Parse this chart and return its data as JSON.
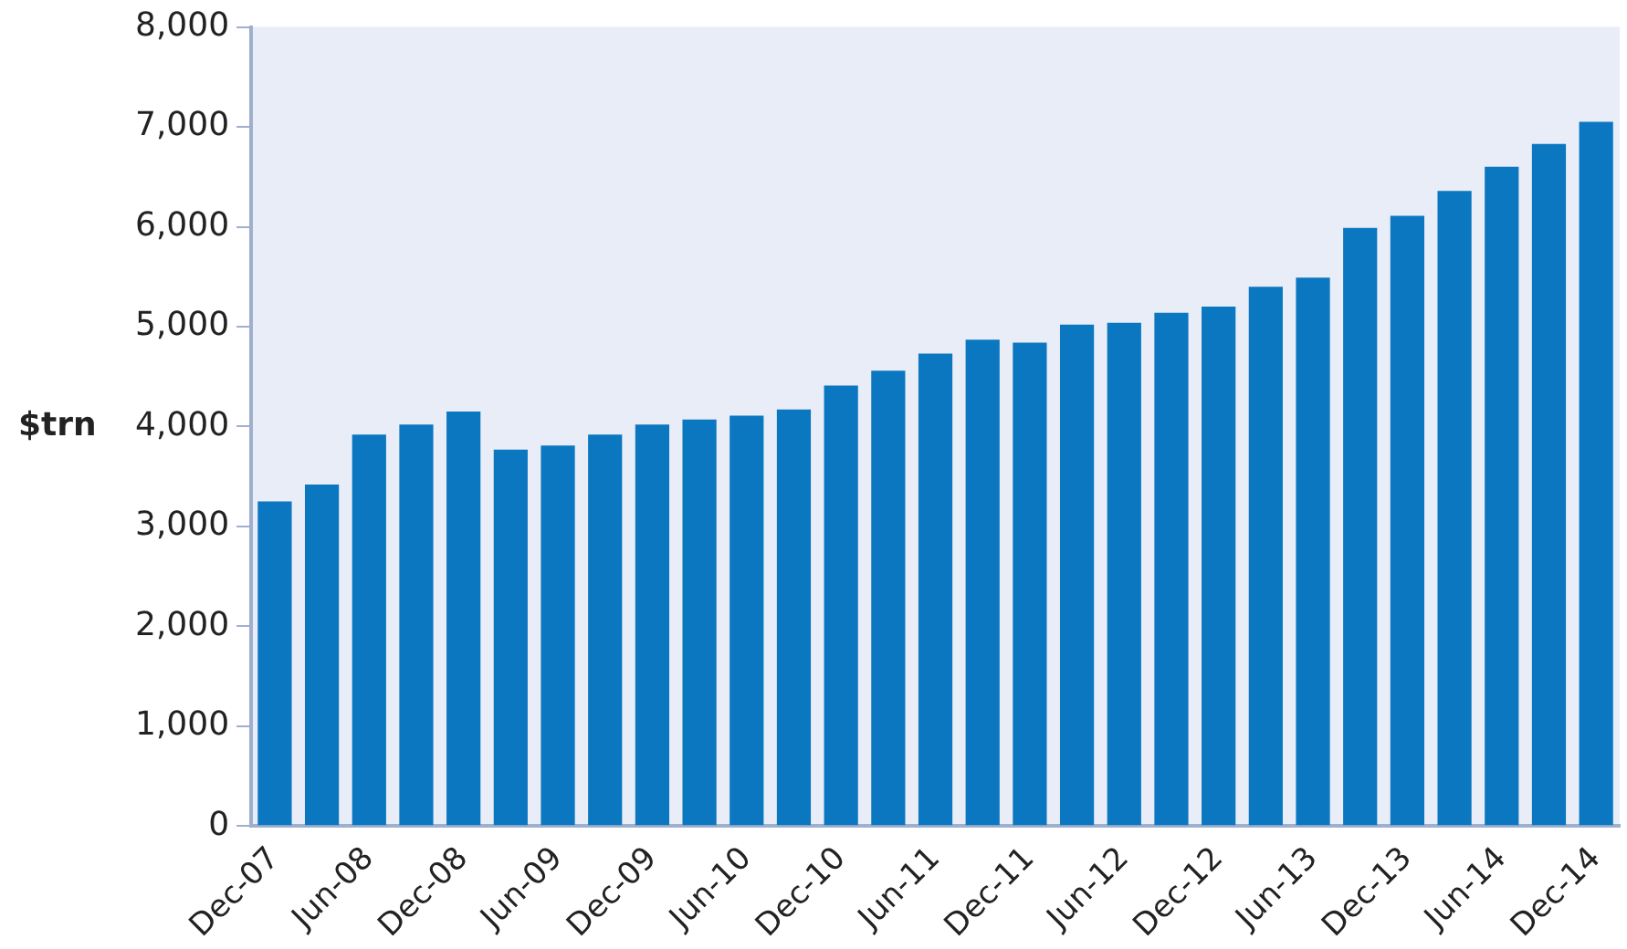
{
  "chart_data": {
    "type": "bar",
    "ylabel": "$trn",
    "categories": [
      "Dec-07",
      null,
      "Jun-08",
      null,
      "Dec-08",
      null,
      "Jun-09",
      null,
      "Dec-09",
      null,
      "Jun-10",
      null,
      "Dec-10",
      null,
      "Jun-11",
      null,
      "Dec-11",
      null,
      "Jun-12",
      null,
      "Dec-12",
      null,
      "Jun-13",
      null,
      "Dec-13",
      null,
      "Jun-14",
      null,
      "Dec-14"
    ],
    "values": [
      3250,
      3420,
      3920,
      4020,
      4150,
      3770,
      3810,
      3920,
      4020,
      4070,
      4110,
      4170,
      4410,
      4560,
      4730,
      4870,
      4840,
      5020,
      5040,
      5140,
      5200,
      5400,
      5490,
      5990,
      6110,
      6360,
      6600,
      6830,
      7050
    ],
    "color": "#0b77c0",
    "ylim": [
      0,
      8000
    ],
    "yticks": [
      0,
      {
        "value": 1000,
        "label": "1,000"
      },
      {
        "value": 2000,
        "label": "2,000"
      },
      {
        "value": 3000,
        "label": "3,000"
      },
      {
        "value": 4000,
        "label": "4,000"
      },
      {
        "value": 5000,
        "label": "5,000"
      },
      {
        "value": 6000,
        "label": "6,000"
      },
      {
        "value": 7000,
        "label": "7,000"
      },
      {
        "value": 8000,
        "label": "8,000"
      }
    ],
    "grid": false,
    "legend": false
  }
}
